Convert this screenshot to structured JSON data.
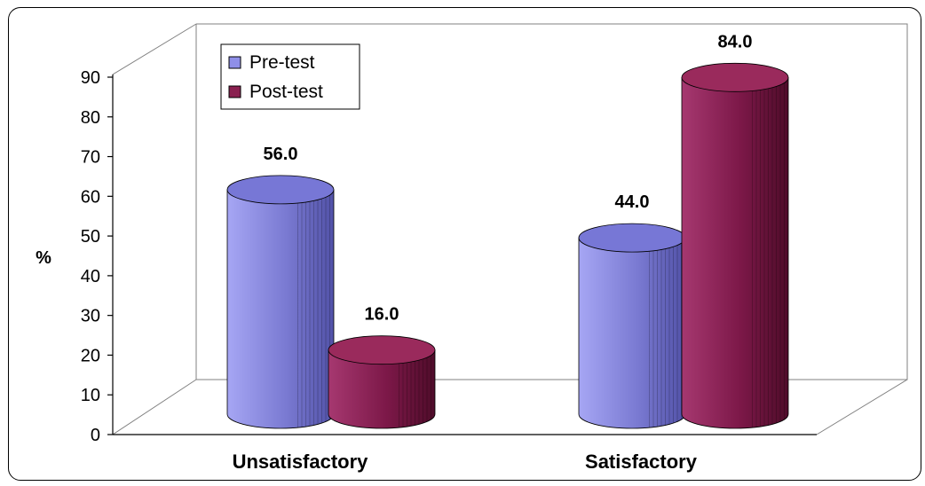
{
  "chart_data": {
    "type": "bar",
    "categories": [
      "Unsatisfactory",
      "Satisfactory"
    ],
    "series": [
      {
        "name": "Pre-test",
        "values": [
          56.0,
          44.0
        ],
        "color": "#8f8fe8",
        "top_color": "#7777d6",
        "dark_color": "#5252a8"
      },
      {
        "name": "Post-test",
        "values": [
          16.0,
          84.0
        ],
        "color": "#8a2050",
        "top_color": "#9a2a5c",
        "dark_color": "#4f0c2a"
      }
    ],
    "data_labels": [
      [
        "56.0",
        "44.0"
      ],
      [
        "16.0",
        "84.0"
      ]
    ],
    "ylabel": "%",
    "xlabel": "",
    "ylim": [
      0,
      90
    ],
    "yticks": [
      "0",
      "10",
      "20",
      "30",
      "40",
      "50",
      "60",
      "70",
      "80",
      "90"
    ],
    "legend_position": "top-left",
    "style": "3d-cylinder"
  }
}
